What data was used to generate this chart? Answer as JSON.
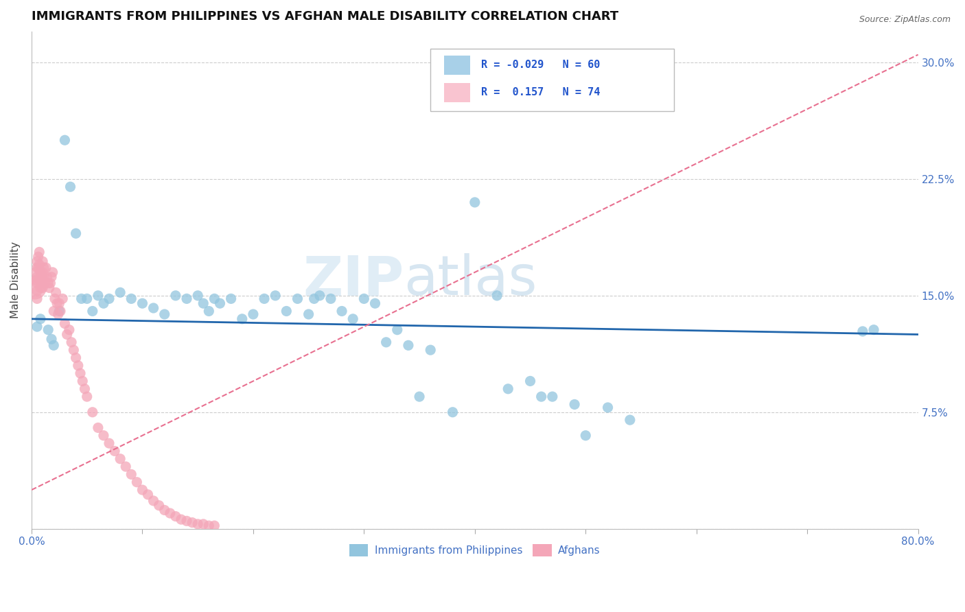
{
  "title": "IMMIGRANTS FROM PHILIPPINES VS AFGHAN MALE DISABILITY CORRELATION CHART",
  "source": "Source: ZipAtlas.com",
  "watermark": "ZIPatlas",
  "ylabel": "Male Disability",
  "xlim": [
    0.0,
    0.8
  ],
  "ylim": [
    0.0,
    0.32
  ],
  "xticks": [
    0.0,
    0.1,
    0.2,
    0.3,
    0.4,
    0.5,
    0.6,
    0.7,
    0.8
  ],
  "xticklabels": [
    "0.0%",
    "",
    "",
    "",
    "",
    "",
    "",
    "",
    "80.0%"
  ],
  "yticks": [
    0.0,
    0.075,
    0.15,
    0.225,
    0.3
  ],
  "yticklabels": [
    "",
    "7.5%",
    "15.0%",
    "22.5%",
    "30.0%"
  ],
  "philippines_color": "#92c5de",
  "afghans_color": "#f4a6b8",
  "philippines_line_color": "#2166ac",
  "afghans_line_color": "#e87090",
  "grid_color": "#cccccc",
  "philippines_R": -0.029,
  "afghans_R": 0.157,
  "philippines_N": 60,
  "afghans_N": 74,
  "phil_legend_color": "#a8d0e8",
  "afg_legend_color": "#f9c4d0",
  "philippines_x": [
    0.005,
    0.008,
    0.015,
    0.018,
    0.02,
    0.025,
    0.03,
    0.035,
    0.04,
    0.045,
    0.05,
    0.055,
    0.06,
    0.065,
    0.07,
    0.08,
    0.09,
    0.1,
    0.11,
    0.12,
    0.13,
    0.14,
    0.15,
    0.155,
    0.16,
    0.165,
    0.17,
    0.18,
    0.19,
    0.2,
    0.21,
    0.22,
    0.23,
    0.24,
    0.25,
    0.255,
    0.26,
    0.27,
    0.28,
    0.29,
    0.3,
    0.31,
    0.32,
    0.33,
    0.34,
    0.35,
    0.36,
    0.38,
    0.4,
    0.42,
    0.43,
    0.45,
    0.46,
    0.47,
    0.49,
    0.5,
    0.52,
    0.54,
    0.75,
    0.76
  ],
  "philippines_y": [
    0.13,
    0.135,
    0.128,
    0.122,
    0.118,
    0.14,
    0.25,
    0.22,
    0.19,
    0.148,
    0.148,
    0.14,
    0.15,
    0.145,
    0.148,
    0.152,
    0.148,
    0.145,
    0.142,
    0.138,
    0.15,
    0.148,
    0.15,
    0.145,
    0.14,
    0.148,
    0.145,
    0.148,
    0.135,
    0.138,
    0.148,
    0.15,
    0.14,
    0.148,
    0.138,
    0.148,
    0.15,
    0.148,
    0.14,
    0.135,
    0.148,
    0.145,
    0.12,
    0.128,
    0.118,
    0.085,
    0.115,
    0.075,
    0.21,
    0.15,
    0.09,
    0.095,
    0.085,
    0.085,
    0.08,
    0.06,
    0.078,
    0.07,
    0.127,
    0.128
  ],
  "afghans_x": [
    0.003,
    0.004,
    0.004,
    0.005,
    0.005,
    0.005,
    0.005,
    0.005,
    0.005,
    0.006,
    0.006,
    0.007,
    0.007,
    0.008,
    0.008,
    0.008,
    0.009,
    0.009,
    0.01,
    0.01,
    0.01,
    0.01,
    0.011,
    0.011,
    0.012,
    0.013,
    0.014,
    0.015,
    0.016,
    0.017,
    0.018,
    0.019,
    0.02,
    0.021,
    0.022,
    0.023,
    0.024,
    0.025,
    0.026,
    0.028,
    0.03,
    0.032,
    0.034,
    0.036,
    0.038,
    0.04,
    0.042,
    0.044,
    0.046,
    0.048,
    0.05,
    0.055,
    0.06,
    0.065,
    0.07,
    0.075,
    0.08,
    0.085,
    0.09,
    0.095,
    0.1,
    0.105,
    0.11,
    0.115,
    0.12,
    0.125,
    0.13,
    0.135,
    0.14,
    0.145,
    0.15,
    0.155,
    0.16,
    0.165
  ],
  "afghans_y": [
    0.155,
    0.16,
    0.165,
    0.172,
    0.168,
    0.162,
    0.158,
    0.153,
    0.148,
    0.175,
    0.168,
    0.178,
    0.17,
    0.165,
    0.16,
    0.155,
    0.163,
    0.158,
    0.172,
    0.165,
    0.16,
    0.155,
    0.168,
    0.162,
    0.158,
    0.168,
    0.162,
    0.158,
    0.155,
    0.158,
    0.162,
    0.165,
    0.14,
    0.148,
    0.152,
    0.145,
    0.138,
    0.145,
    0.14,
    0.148,
    0.132,
    0.125,
    0.128,
    0.12,
    0.115,
    0.11,
    0.105,
    0.1,
    0.095,
    0.09,
    0.085,
    0.075,
    0.065,
    0.06,
    0.055,
    0.05,
    0.045,
    0.04,
    0.035,
    0.03,
    0.025,
    0.022,
    0.018,
    0.015,
    0.012,
    0.01,
    0.008,
    0.006,
    0.005,
    0.004,
    0.003,
    0.003,
    0.002,
    0.002
  ],
  "afghans_sizes_special": [
    [
      0,
      300
    ]
  ],
  "phil_line_x": [
    0.0,
    0.8
  ],
  "phil_line_y": [
    0.135,
    0.125
  ],
  "afg_line_x": [
    0.0,
    0.8
  ],
  "afg_line_y": [
    0.025,
    0.305
  ]
}
